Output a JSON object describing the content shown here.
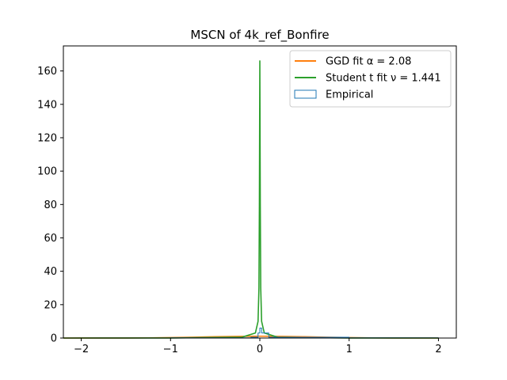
{
  "chart_data": {
    "type": "line",
    "title": "MSCN of 4k_ref_Bonfire",
    "xlabel": "",
    "ylabel": "",
    "xlim": [
      -2.2,
      2.2
    ],
    "ylim": [
      0,
      175
    ],
    "xticks": [
      -2,
      -1,
      0,
      1,
      2
    ],
    "xtick_labels": [
      "−2",
      "−1",
      "0",
      "1",
      "2"
    ],
    "yticks": [
      0,
      20,
      40,
      60,
      80,
      100,
      120,
      140,
      160
    ],
    "ytick_labels": [
      "0",
      "20",
      "40",
      "60",
      "80",
      "100",
      "120",
      "140",
      "160"
    ],
    "grid": false,
    "legend_position": "top-right",
    "series": [
      {
        "name": "GGD fit α = 2.08",
        "color": "#ff7f0e",
        "kind": "line",
        "x": [
          -2.2,
          -2.0,
          -1.75,
          -1.5,
          -1.25,
          -1.0,
          -0.75,
          -0.5,
          -0.25,
          0.0,
          0.25,
          0.5,
          0.75,
          1.0,
          1.25,
          1.5,
          1.75,
          2.0
        ],
        "y": [
          0.0,
          0.01,
          0.02,
          0.05,
          0.12,
          0.27,
          0.5,
          0.78,
          1.0,
          1.08,
          1.0,
          0.78,
          0.5,
          0.27,
          0.12,
          0.05,
          0.02,
          0.01
        ]
      },
      {
        "name": "Student t fit ν = 1.441",
        "color": "#2ca02c",
        "kind": "line",
        "x": [
          -2.2,
          -1.0,
          -0.2,
          -0.05,
          -0.02,
          -0.01,
          -0.005,
          0.0,
          0.005,
          0.01,
          0.02,
          0.05,
          0.2,
          1.0,
          2.0
        ],
        "y": [
          0.0,
          0.05,
          0.5,
          3.0,
          10.0,
          30.0,
          80.0,
          166.0,
          80.0,
          30.0,
          10.0,
          3.0,
          0.5,
          0.05,
          0.0
        ]
      },
      {
        "name": "Empirical",
        "color": "#1f77b4",
        "kind": "histogram",
        "x": [
          -2.2,
          -2.0,
          -1.0,
          -0.1,
          -0.02,
          0.0,
          0.02,
          0.1,
          1.0,
          2.0
        ],
        "y": [
          0.0,
          0.01,
          0.1,
          0.5,
          3.0,
          6.0,
          3.0,
          0.5,
          0.1,
          0.01
        ]
      }
    ]
  }
}
